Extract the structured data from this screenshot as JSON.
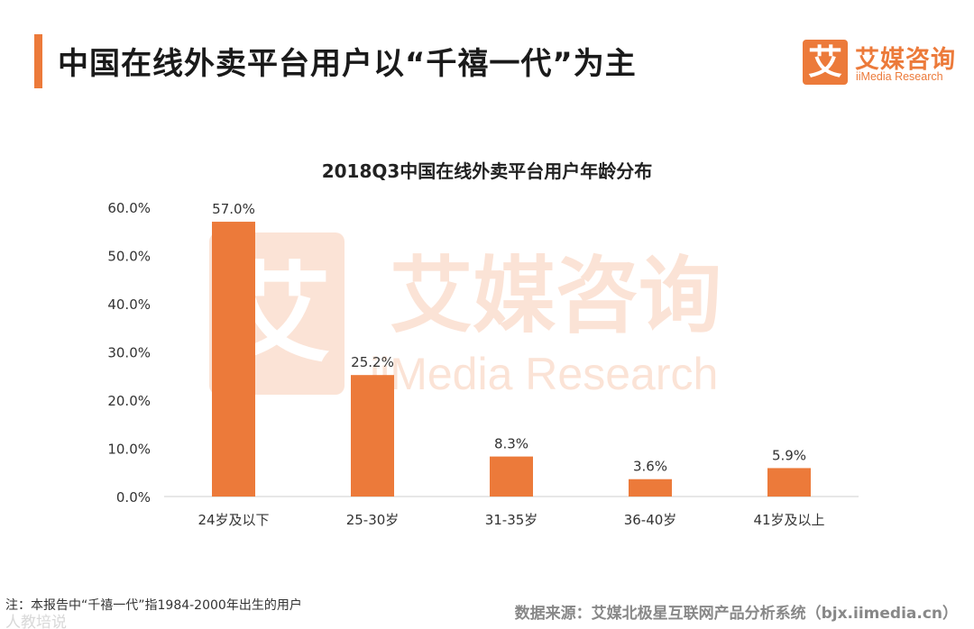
{
  "header": {
    "title": "中国在线外卖平台用户以“千禧一代”为主",
    "accent_color": "#ec7a3a"
  },
  "logo": {
    "mark": "艾",
    "name_cn": "艾媒咨询",
    "name_en": "iiMedia Research"
  },
  "watermark": {
    "mark": "艾",
    "name_cn": "艾媒咨询",
    "name_en": "iiMedia Research"
  },
  "chart_data": {
    "type": "bar",
    "title": "2018Q3中国在线外卖平台用户年龄分布",
    "categories": [
      "24岁及以下",
      "25-30岁",
      "31-35岁",
      "36-40岁",
      "41岁及以上"
    ],
    "values": [
      57.0,
      25.2,
      8.3,
      3.6,
      5.9
    ],
    "value_labels": [
      "57.0%",
      "25.2%",
      "8.3%",
      "3.6%",
      "5.9%"
    ],
    "ylim": [
      0,
      60
    ],
    "yticks": [
      "0.0%",
      "10.0%",
      "20.0%",
      "30.0%",
      "40.0%",
      "50.0%",
      "60.0%"
    ],
    "xlabel": "",
    "ylabel": "",
    "grid": false,
    "bar_color": "#ec7a3a"
  },
  "footer": {
    "note": "注：本报告中“千禧一代”指1984-2000年出生的用户",
    "source": "数据来源：艾媒北极星互联网产品分析系统（bjx.iimedia.cn）",
    "corner_watermark": "人教培说"
  }
}
